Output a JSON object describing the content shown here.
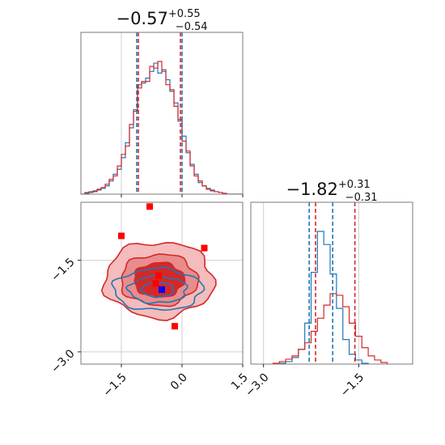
{
  "chart_data": [
    {
      "type": "histogram",
      "panel": "top-left",
      "title": {
        "value": "−0.57",
        "plus": "+0.55",
        "minus": "−0.54"
      },
      "xlim": [
        -2.5,
        1.5
      ],
      "grid": true,
      "ticks_x": [
        -1.5,
        0.0,
        1.5
      ],
      "series": [
        {
          "color": "#1f77b4",
          "bin_edges": [
            -2.5,
            -2.4,
            -2.3,
            -2.2,
            -2.1,
            -2.0,
            -1.9,
            -1.8,
            -1.7,
            -1.6,
            -1.5,
            -1.4,
            -1.3,
            -1.2,
            -1.1,
            -1.0,
            -0.9,
            -0.8,
            -0.7,
            -0.6,
            -0.5,
            -0.4,
            -0.3,
            -0.2,
            -0.1,
            0.0,
            0.1,
            0.2,
            0.3,
            0.4,
            0.5,
            0.6,
            0.7,
            0.8,
            0.9,
            1.0,
            1.1,
            1.2,
            1.3,
            1.4,
            1.5
          ],
          "counts": [
            0,
            1,
            2,
            4,
            5,
            7,
            10,
            16,
            24,
            30,
            44,
            62,
            80,
            102,
            132,
            134,
            140,
            148,
            158,
            146,
            150,
            138,
            124,
            110,
            88,
            70,
            50,
            36,
            24,
            14,
            10,
            7,
            5,
            3,
            2,
            1,
            0,
            0,
            0,
            0
          ]
        },
        {
          "color": "#d62728",
          "bin_edges": [
            -2.5,
            -2.4,
            -2.3,
            -2.2,
            -2.1,
            -2.0,
            -1.9,
            -1.8,
            -1.7,
            -1.6,
            -1.5,
            -1.4,
            -1.3,
            -1.2,
            -1.1,
            -1.0,
            -0.9,
            -0.8,
            -0.7,
            -0.6,
            -0.5,
            -0.4,
            -0.3,
            -0.2,
            -0.1,
            0.0,
            0.1,
            0.2,
            0.3,
            0.4,
            0.5,
            0.6,
            0.7,
            0.8,
            0.9,
            1.0,
            1.1,
            1.2,
            1.3,
            1.4,
            1.5
          ],
          "counts": [
            0,
            2,
            3,
            3,
            6,
            8,
            12,
            18,
            22,
            34,
            48,
            58,
            84,
            100,
            128,
            136,
            136,
            154,
            152,
            160,
            148,
            132,
            126,
            106,
            90,
            64,
            52,
            34,
            22,
            16,
            10,
            6,
            4,
            3,
            2,
            1,
            0,
            0,
            0,
            0
          ]
        }
      ],
      "quantile_lines": [
        {
          "color": "#1f77b4",
          "x": [
            -1.12,
            0.0
          ]
        },
        {
          "color": "#d62728",
          "x": [
            -1.08,
            -0.04
          ]
        }
      ]
    },
    {
      "type": "histogram",
      "panel": "bottom-right",
      "title": {
        "value": "−1.82",
        "plus": "+0.31",
        "minus": "−0.31"
      },
      "xlim": [
        -3.2,
        -0.65
      ],
      "grid": true,
      "ticks_x": [
        -3.0,
        -1.5
      ],
      "series": [
        {
          "color": "#1f77b4",
          "bin_edges": [
            -2.75,
            -2.65,
            -2.55,
            -2.45,
            -2.35,
            -2.25,
            -2.15,
            -2.05,
            -1.95,
            -1.85,
            -1.75,
            -1.65,
            -1.55,
            -1.45,
            -1.35
          ],
          "counts": [
            1,
            3,
            8,
            18,
            50,
            112,
            162,
            146,
            110,
            68,
            30,
            12,
            5,
            1
          ]
        },
        {
          "color": "#d62728",
          "bin_edges": [
            -2.85,
            -2.75,
            -2.65,
            -2.55,
            -2.45,
            -2.35,
            -2.25,
            -2.15,
            -2.05,
            -1.95,
            -1.85,
            -1.75,
            -1.65,
            -1.55,
            -1.45,
            -1.35,
            -1.25,
            -1.15,
            -1.05
          ],
          "counts": [
            1,
            3,
            6,
            10,
            18,
            26,
            40,
            56,
            72,
            86,
            84,
            70,
            50,
            34,
            20,
            10,
            5,
            2
          ]
        }
      ],
      "quantile_lines": [
        {
          "color": "#1f77b4",
          "x": [
            -2.28,
            -1.91
          ]
        },
        {
          "color": "#d62728",
          "x": [
            -2.18,
            -1.56
          ]
        }
      ]
    },
    {
      "type": "contour",
      "panel": "bottom-left",
      "xlim": [
        -2.5,
        1.5
      ],
      "ylim": [
        -3.2,
        -0.55
      ],
      "grid": true,
      "ticks_x": [
        -1.5,
        0.0,
        1.5
      ],
      "ticks_y": [
        -1.5,
        -3.0
      ],
      "contours": [
        {
          "color": "#d62728",
          "filled": true,
          "center": [
            -0.57,
            -1.82
          ],
          "radii": [
            [
              1.35,
              0.62
            ],
            [
              0.95,
              0.42
            ],
            [
              0.62,
              0.28
            ]
          ],
          "fill_colors": [
            "#f4bcbc",
            "#e88c8c",
            "#d62728"
          ]
        },
        {
          "color": "#1f77b4",
          "filled": false,
          "center": [
            -0.6,
            -1.98
          ],
          "radii": [
            [
              1.1,
              0.34
            ],
            [
              0.72,
              0.22
            ],
            [
              0.4,
              0.12
            ]
          ]
        }
      ],
      "markers": [
        {
          "color": "#ff0000",
          "shape": "square",
          "points": [
            [
              -0.8,
              -0.62
            ],
            [
              -1.5,
              -1.1
            ],
            [
              0.55,
              -1.3
            ],
            [
              -0.58,
              -1.75
            ],
            [
              -0.65,
              -1.88
            ],
            [
              -0.18,
              -2.58
            ]
          ]
        },
        {
          "color": "#0000ff",
          "shape": "square",
          "points": [
            [
              -0.5,
              -1.98
            ]
          ]
        }
      ]
    }
  ]
}
